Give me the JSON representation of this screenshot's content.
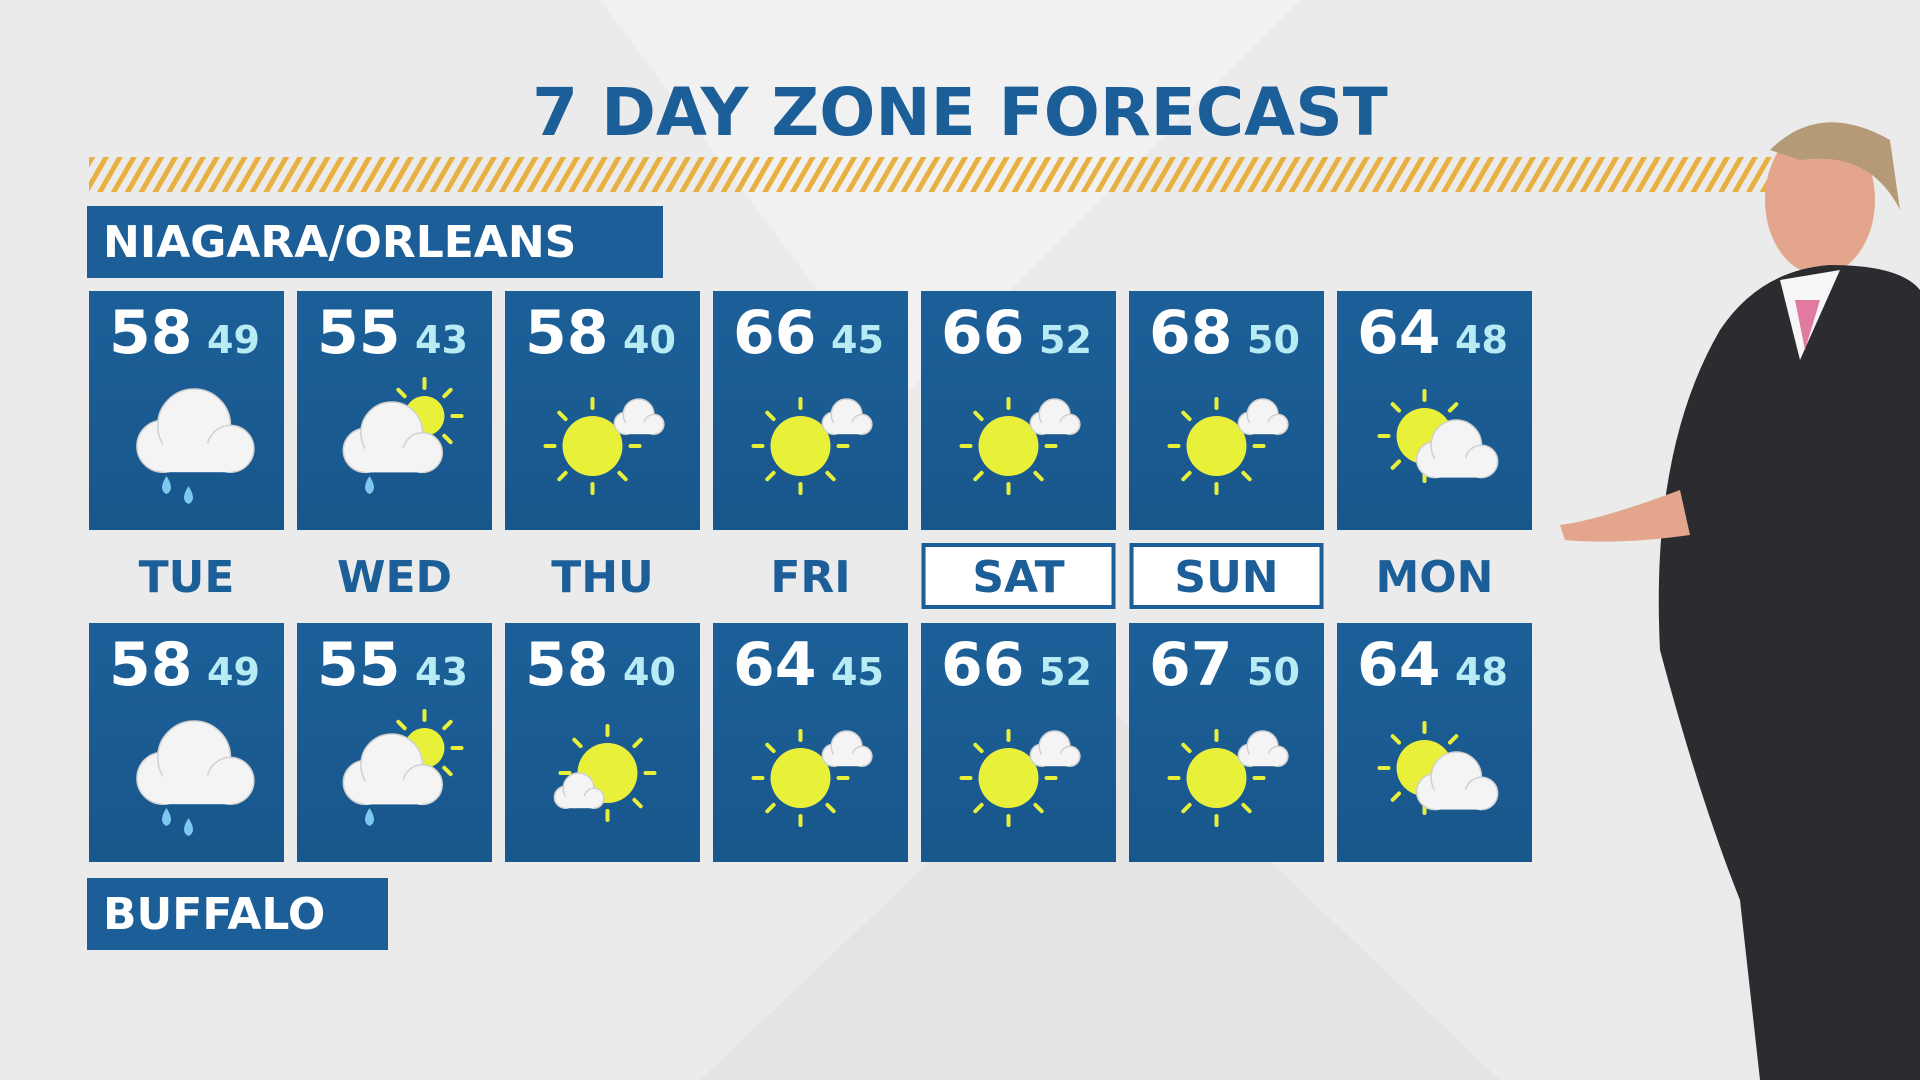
{
  "title": "7 DAY ZONE FORECAST",
  "days": [
    "TUE",
    "WED",
    "THU",
    "FRI",
    "SAT",
    "SUN",
    "MON"
  ],
  "zones": [
    {
      "name": "NIAGARA/ORLEANS",
      "forecast": [
        {
          "high": 58,
          "low": 49
        },
        {
          "high": 55,
          "low": 43
        },
        {
          "high": 58,
          "low": 40
        },
        {
          "high": 66,
          "low": 45
        },
        {
          "high": 66,
          "low": 52
        },
        {
          "high": 68,
          "low": 50
        },
        {
          "high": 64,
          "low": 48
        }
      ]
    },
    {
      "name": "BUFFALO",
      "forecast": [
        {
          "high": 58,
          "low": 49
        },
        {
          "high": 55,
          "low": 43
        },
        {
          "high": 58,
          "low": 40
        },
        {
          "high": 64,
          "low": 45
        },
        {
          "high": 66,
          "low": 52
        },
        {
          "high": 67,
          "low": 50
        },
        {
          "high": 64,
          "low": 48
        }
      ]
    }
  ]
}
